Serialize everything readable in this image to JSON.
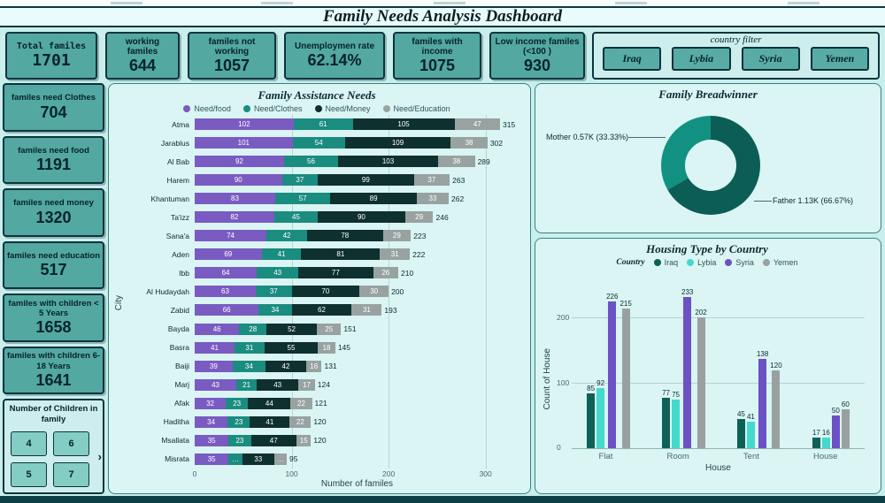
{
  "title": "Family Needs Analysis Dashboard",
  "kpis": [
    {
      "label": "Total familes",
      "value": "1701"
    },
    {
      "label": "working familes",
      "value": "644"
    },
    {
      "label": "familes not working",
      "value": "1057"
    },
    {
      "label": "Unemploymen rate",
      "value": "62.14%"
    },
    {
      "label": "familes with income",
      "value": "1075"
    },
    {
      "label": "Low income familes (<100 )",
      "value": "930"
    }
  ],
  "country_filter": {
    "label": "country filter",
    "options": [
      "Iraq",
      "Lybia",
      "Syria",
      "Yemen"
    ]
  },
  "sidebar_cards": [
    {
      "label": "familes need Clothes",
      "value": "704"
    },
    {
      "label": "familes need food",
      "value": "1191"
    },
    {
      "label": "familes need money",
      "value": "1320"
    },
    {
      "label": "familes need education",
      "value": "517"
    },
    {
      "label": "familes with children < 5 Years",
      "value": "1658"
    },
    {
      "label": "familes with children 6-18 Years",
      "value": "1641"
    }
  ],
  "children_filter": {
    "label": "Number of Children in family",
    "options": [
      "4",
      "6",
      "5",
      "7"
    ],
    "arrow": "›"
  },
  "colors": {
    "card_teal": "#53a8a1",
    "dark_border": "#0c343c",
    "page_bg": "#c9eeec",
    "panel_bg": "#daf5f3"
  },
  "chart_data": [
    {
      "type": "bar",
      "variant": "horizontal-stacked",
      "title": "Family Assistance Needs",
      "xlabel": "Number of familes",
      "ylabel": "City",
      "x_ticks": [
        0,
        100,
        200,
        300
      ],
      "axis_max": 335,
      "grid": true,
      "legend_position": "top",
      "legend": [
        {
          "name": "Need/food",
          "color": "#7a5bc2"
        },
        {
          "name": "Need/Clothes",
          "color": "#1b8c80"
        },
        {
          "name": "Need/Money",
          "color": "#0e302e"
        },
        {
          "name": "Need/Education",
          "color": "#98a3a1"
        }
      ],
      "rows": [
        {
          "city": "Atma",
          "segments": [
            {
              "v": 102,
              "label": "102"
            },
            {
              "v": 61,
              "label": "61"
            },
            {
              "v": 105,
              "label": "105"
            },
            {
              "v": 47,
              "label": "47"
            }
          ],
          "total": "315"
        },
        {
          "city": "Jarablus",
          "segments": [
            {
              "v": 101,
              "label": "101"
            },
            {
              "v": 54,
              "label": "54"
            },
            {
              "v": 109,
              "label": "109"
            },
            {
              "v": 38,
              "label": "38"
            }
          ],
          "total": "302"
        },
        {
          "city": "Al Bab",
          "segments": [
            {
              "v": 92,
              "label": "92"
            },
            {
              "v": 56,
              "label": "56"
            },
            {
              "v": 103,
              "label": "103"
            },
            {
              "v": 38,
              "label": "38"
            }
          ],
          "total": "289"
        },
        {
          "city": "Harem",
          "segments": [
            {
              "v": 90,
              "label": "90"
            },
            {
              "v": 37,
              "label": "37"
            },
            {
              "v": 99,
              "label": "99"
            },
            {
              "v": 37,
              "label": "37"
            }
          ],
          "total": "263"
        },
        {
          "city": "Khantuman",
          "segments": [
            {
              "v": 83,
              "label": "83"
            },
            {
              "v": 57,
              "label": "57"
            },
            {
              "v": 89,
              "label": "89"
            },
            {
              "v": 33,
              "label": "33"
            }
          ],
          "total": "262"
        },
        {
          "city": "Ta'izz",
          "segments": [
            {
              "v": 82,
              "label": "82"
            },
            {
              "v": 45,
              "label": "45"
            },
            {
              "v": 90,
              "label": "90"
            },
            {
              "v": 29,
              "label": "29"
            }
          ],
          "total": "246"
        },
        {
          "city": "Sana'a",
          "segments": [
            {
              "v": 74,
              "label": "74"
            },
            {
              "v": 42,
              "label": "42"
            },
            {
              "v": 78,
              "label": "78"
            },
            {
              "v": 29,
              "label": "29"
            }
          ],
          "total": "223"
        },
        {
          "city": "Aden",
          "segments": [
            {
              "v": 69,
              "label": "69"
            },
            {
              "v": 41,
              "label": "41"
            },
            {
              "v": 81,
              "label": "81"
            },
            {
              "v": 31,
              "label": "31"
            }
          ],
          "total": "222"
        },
        {
          "city": "Ibb",
          "segments": [
            {
              "v": 64,
              "label": "64"
            },
            {
              "v": 43,
              "label": "43"
            },
            {
              "v": 77,
              "label": "77"
            },
            {
              "v": 26,
              "label": "26"
            }
          ],
          "total": "210"
        },
        {
          "city": "Al Hudaydah",
          "segments": [
            {
              "v": 63,
              "label": "63"
            },
            {
              "v": 37,
              "label": "37"
            },
            {
              "v": 70,
              "label": "70"
            },
            {
              "v": 30,
              "label": "30"
            }
          ],
          "total": "200"
        },
        {
          "city": "Zabid",
          "segments": [
            {
              "v": 66,
              "label": "66"
            },
            {
              "v": 34,
              "label": "34"
            },
            {
              "v": 62,
              "label": "62"
            },
            {
              "v": 31,
              "label": "31"
            }
          ],
          "total": "193"
        },
        {
          "city": "Bayda",
          "segments": [
            {
              "v": 46,
              "label": "46"
            },
            {
              "v": 28,
              "label": "28"
            },
            {
              "v": 52,
              "label": "52"
            },
            {
              "v": 25,
              "label": "25"
            }
          ],
          "total": "151"
        },
        {
          "city": "Basra",
          "segments": [
            {
              "v": 41,
              "label": "41"
            },
            {
              "v": 31,
              "label": "31"
            },
            {
              "v": 55,
              "label": "55"
            },
            {
              "v": 18,
              "label": "18"
            }
          ],
          "total": "145"
        },
        {
          "city": "Baiji",
          "segments": [
            {
              "v": 39,
              "label": "39"
            },
            {
              "v": 34,
              "label": "34"
            },
            {
              "v": 42,
              "label": "42"
            },
            {
              "v": 16,
              "label": "16"
            }
          ],
          "total": "131"
        },
        {
          "city": "Marj",
          "segments": [
            {
              "v": 43,
              "label": "43"
            },
            {
              "v": 21,
              "label": "21"
            },
            {
              "v": 43,
              "label": "43"
            },
            {
              "v": 17,
              "label": "17"
            }
          ],
          "total": "124"
        },
        {
          "city": "Afak",
          "segments": [
            {
              "v": 32,
              "label": "32"
            },
            {
              "v": 23,
              "label": "23"
            },
            {
              "v": 44,
              "label": "44"
            },
            {
              "v": 22,
              "label": "22"
            }
          ],
          "total": "121"
        },
        {
          "city": "Haditha",
          "segments": [
            {
              "v": 34,
              "label": "34"
            },
            {
              "v": 23,
              "label": "23"
            },
            {
              "v": 41,
              "label": "41"
            },
            {
              "v": 22,
              "label": "22"
            }
          ],
          "total": "120"
        },
        {
          "city": "Msallata",
          "segments": [
            {
              "v": 35,
              "label": "35"
            },
            {
              "v": 23,
              "label": "23"
            },
            {
              "v": 47,
              "label": "47"
            },
            {
              "v": 15,
              "label": "15"
            }
          ],
          "total": "120"
        },
        {
          "city": "Misrata",
          "segments": [
            {
              "v": 35,
              "label": "35"
            },
            {
              "v": 14,
              "label": "…"
            },
            {
              "v": 33,
              "label": "33"
            },
            {
              "v": 13,
              "label": "…"
            }
          ],
          "total": "95"
        }
      ]
    },
    {
      "type": "pie",
      "variant": "donut",
      "title": "Family Breadwinner",
      "slices": [
        {
          "name": "Mother",
          "value_label": "Mother 0.57K (33.33%)",
          "percent": 33.33,
          "color": "#129183"
        },
        {
          "name": "Father",
          "value_label": "Father 1.13K (66.67%)",
          "percent": 66.67,
          "color": "#0b5d56"
        }
      ]
    },
    {
      "type": "bar",
      "variant": "grouped",
      "title": "Housing Type by Country",
      "xlabel": "House",
      "ylabel": "Count of House",
      "legend_label": "Country",
      "y_ticks": [
        0,
        100,
        200
      ],
      "axis_max": 260,
      "grid": true,
      "categories": [
        "Flat",
        "Room",
        "Tent",
        "House"
      ],
      "series": [
        {
          "name": "Iraq",
          "color": "#0d6157",
          "values": [
            85,
            77,
            45,
            17
          ]
        },
        {
          "name": "Lybia",
          "color": "#45d9cc",
          "values": [
            92,
            75,
            41,
            16
          ]
        },
        {
          "name": "Syria",
          "color": "#6b51c4",
          "values": [
            226,
            233,
            138,
            50
          ]
        },
        {
          "name": "Yemen",
          "color": "#99a1a0",
          "values": [
            215,
            202,
            120,
            60
          ]
        }
      ]
    }
  ]
}
